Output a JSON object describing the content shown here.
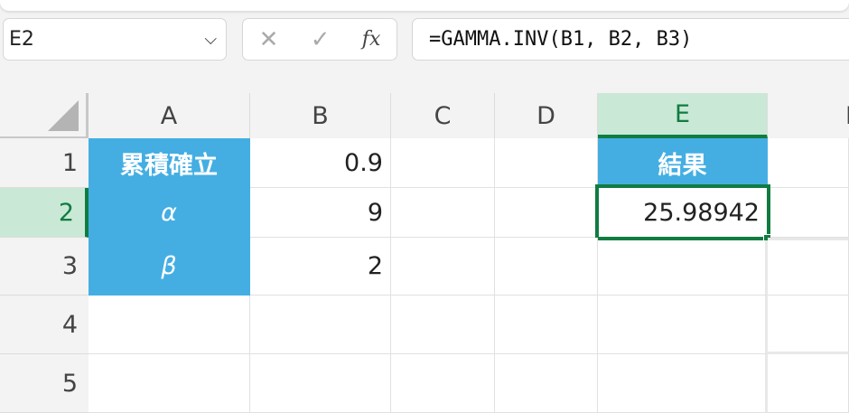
{
  "namebox": {
    "value": "E2"
  },
  "formula_bar": {
    "cancel_icon": "✕",
    "enter_icon": "✓",
    "fx_label": "fx",
    "formula": "=GAMMA.INV(B1, B2, B3)"
  },
  "columns": [
    "A",
    "B",
    "C",
    "D",
    "E",
    "F"
  ],
  "rows": [
    "1",
    "2",
    "3",
    "4",
    "5"
  ],
  "cells": {
    "A1": "累積確立",
    "A2": "α",
    "A3": "β",
    "B1": "0.9",
    "B2": "9",
    "B3": "2",
    "E1": "結果",
    "E2": "25.98942"
  },
  "colors": {
    "accent_green": "#107c41",
    "header_blue": "#44aee3",
    "selected_header": "#c9e9d6"
  }
}
